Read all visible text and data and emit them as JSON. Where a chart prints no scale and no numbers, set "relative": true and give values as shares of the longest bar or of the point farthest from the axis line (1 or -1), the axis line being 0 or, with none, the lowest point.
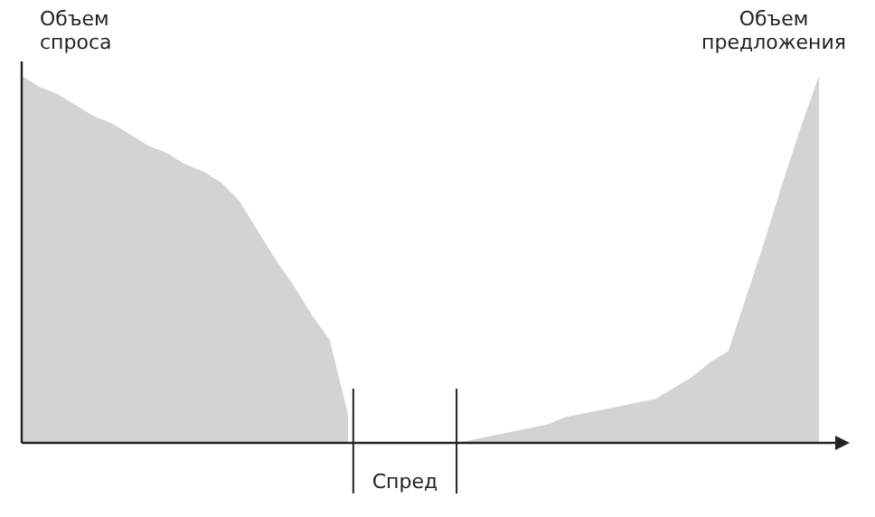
{
  "chart_data": {
    "type": "area",
    "relative": true,
    "categories": [
      null,
      null,
      null,
      null,
      null,
      null,
      null,
      null,
      null,
      null,
      null,
      null,
      null,
      null,
      null,
      null,
      null,
      null,
      null,
      null,
      null,
      null,
      null,
      null,
      null,
      null,
      null,
      null,
      null,
      null,
      null,
      null,
      null,
      null,
      null,
      null,
      null,
      null,
      null,
      null,
      null,
      null,
      null,
      null,
      null
    ],
    "series": [
      {
        "name": "Объем спроса",
        "color": "#d3d3d3",
        "values": [
          1.0,
          0.97,
          0.95,
          0.92,
          0.89,
          0.87,
          0.84,
          0.81,
          0.79,
          0.76,
          0.74,
          0.71,
          0.66,
          0.58,
          0.5,
          0.43,
          0.35,
          0.28,
          0.08,
          null,
          null,
          null,
          null,
          null,
          null,
          null,
          null,
          null,
          null,
          null,
          null,
          null,
          null,
          null,
          null,
          null,
          null,
          null,
          null,
          null,
          null,
          null,
          null,
          null,
          null
        ]
      },
      {
        "name": "Объем предложения",
        "color": "#d3d3d3",
        "values": [
          null,
          null,
          null,
          null,
          null,
          null,
          null,
          null,
          null,
          null,
          null,
          null,
          null,
          null,
          null,
          null,
          null,
          null,
          null,
          null,
          null,
          null,
          null,
          null,
          0,
          0.01,
          0.02,
          0.03,
          0.04,
          0.05,
          0.07,
          0.08,
          0.09,
          0.1,
          0.11,
          0.12,
          0.15,
          0.18,
          0.22,
          0.25,
          0.4,
          0.55,
          0.71,
          0.86,
          1.0
        ]
      }
    ],
    "annotations": [
      "Спред"
    ]
  }
}
